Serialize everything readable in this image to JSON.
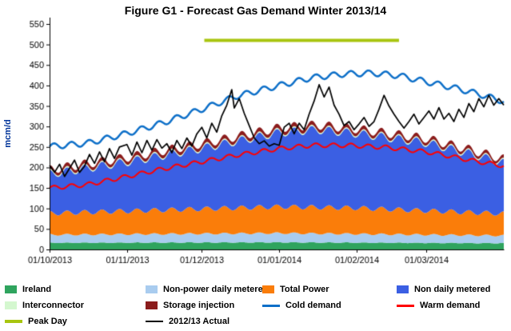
{
  "chart_data": {
    "type": "area",
    "title": "Figure G1 - Forecast Gas Demand Winter 2013/14",
    "ylabel": "mcm/d",
    "x_total_days": 182,
    "x_ticks": [
      {
        "day": 0,
        "label": "01/10/2013"
      },
      {
        "day": 31,
        "label": "01/11/2013"
      },
      {
        "day": 61,
        "label": "01/12/2013"
      },
      {
        "day": 92,
        "label": "01/01/2014"
      },
      {
        "day": 123,
        "label": "01/02/2014"
      },
      {
        "day": 151,
        "label": "01/03/2014"
      }
    ],
    "y_axis": {
      "min": 0,
      "max": 550,
      "step": 50
    },
    "osc_period_days": 7,
    "grid": false,
    "legend_position": "bottom",
    "stack_series": [
      {
        "name": "Ireland",
        "color": "#2FA45E",
        "amp": 1.5,
        "points": [
          [
            0,
            17
          ],
          [
            92,
            18
          ],
          [
            182,
            16
          ]
        ]
      },
      {
        "name": "Non-power daily metered",
        "color": "#A9CCEF",
        "amp": 3,
        "points": [
          [
            0,
            21
          ],
          [
            92,
            24
          ],
          [
            182,
            20
          ]
        ]
      },
      {
        "name": "Total Power",
        "color": "#FA7D0A",
        "amp": 7,
        "points": [
          [
            0,
            56
          ],
          [
            31,
            60
          ],
          [
            61,
            64
          ],
          [
            92,
            68
          ],
          [
            123,
            67
          ],
          [
            151,
            62
          ],
          [
            182,
            57
          ]
        ]
      },
      {
        "name": "Non daily metered",
        "color": "#3B5FE3",
        "amp": 9,
        "points": [
          [
            0,
            100
          ],
          [
            31,
            124
          ],
          [
            61,
            152
          ],
          [
            92,
            185
          ],
          [
            107,
            194
          ],
          [
            123,
            186
          ],
          [
            151,
            170
          ],
          [
            168,
            148
          ],
          [
            182,
            128
          ]
        ]
      },
      {
        "name": "Interconnector",
        "color": "#D4F7CF",
        "amp": 0,
        "points": [
          [
            0,
            3
          ],
          [
            182,
            3
          ]
        ]
      },
      {
        "name": "Storage injection",
        "color": "#8B1C1C",
        "amp": 2,
        "points": [
          [
            0,
            9
          ],
          [
            92,
            10
          ],
          [
            182,
            8
          ]
        ]
      }
    ],
    "line_series": [
      {
        "name": "Warm demand",
        "color": "#FF0000",
        "width": 2,
        "amp": 5,
        "points": [
          [
            0,
            150
          ],
          [
            15,
            158
          ],
          [
            31,
            178
          ],
          [
            45,
            196
          ],
          [
            61,
            214
          ],
          [
            75,
            230
          ],
          [
            92,
            246
          ],
          [
            105,
            254
          ],
          [
            120,
            254
          ],
          [
            135,
            249
          ],
          [
            151,
            238
          ],
          [
            160,
            228
          ],
          [
            170,
            216
          ],
          [
            182,
            204
          ]
        ]
      },
      {
        "name": "Cold demand",
        "color": "#0D6FC8",
        "width": 2.5,
        "amp": 7,
        "points": [
          [
            0,
            251
          ],
          [
            15,
            259
          ],
          [
            31,
            283
          ],
          [
            45,
            308
          ],
          [
            61,
            342
          ],
          [
            75,
            374
          ],
          [
            92,
            400
          ],
          [
            105,
            419
          ],
          [
            118,
            428
          ],
          [
            130,
            430
          ],
          [
            140,
            424
          ],
          [
            151,
            409
          ],
          [
            163,
            393
          ],
          [
            172,
            379
          ],
          [
            182,
            361
          ]
        ]
      },
      {
        "name": "2012/13 Actual",
        "color": "#000000",
        "width": 1.7,
        "amp": 0,
        "points": [
          [
            0,
            205
          ],
          [
            2,
            188
          ],
          [
            4,
            208
          ],
          [
            6,
            178
          ],
          [
            8,
            198
          ],
          [
            10,
            218
          ],
          [
            12,
            188
          ],
          [
            14,
            203
          ],
          [
            16,
            232
          ],
          [
            18,
            210
          ],
          [
            20,
            238
          ],
          [
            22,
            214
          ],
          [
            24,
            246
          ],
          [
            26,
            222
          ],
          [
            28,
            250
          ],
          [
            31,
            256
          ],
          [
            33,
            230
          ],
          [
            35,
            262
          ],
          [
            37,
            236
          ],
          [
            39,
            266
          ],
          [
            41,
            242
          ],
          [
            43,
            268
          ],
          [
            45,
            247
          ],
          [
            47,
            258
          ],
          [
            49,
            236
          ],
          [
            51,
            266
          ],
          [
            53,
            246
          ],
          [
            55,
            272
          ],
          [
            57,
            252
          ],
          [
            59,
            282
          ],
          [
            61,
            298
          ],
          [
            63,
            272
          ],
          [
            65,
            308
          ],
          [
            67,
            286
          ],
          [
            69,
            326
          ],
          [
            71,
            352
          ],
          [
            73,
            390
          ],
          [
            74,
            345
          ],
          [
            76,
            368
          ],
          [
            78,
            332
          ],
          [
            80,
            302
          ],
          [
            82,
            272
          ],
          [
            84,
            258
          ],
          [
            86,
            265
          ],
          [
            88,
            252
          ],
          [
            90,
            258
          ],
          [
            92,
            254
          ],
          [
            94,
            298
          ],
          [
            96,
            308
          ],
          [
            98,
            282
          ],
          [
            100,
            308
          ],
          [
            102,
            292
          ],
          [
            104,
            330
          ],
          [
            106,
            362
          ],
          [
            108,
            402
          ],
          [
            110,
            372
          ],
          [
            112,
            396
          ],
          [
            114,
            352
          ],
          [
            116,
            330
          ],
          [
            118,
            302
          ],
          [
            120,
            312
          ],
          [
            122,
            292
          ],
          [
            124,
            306
          ],
          [
            126,
            322
          ],
          [
            128,
            300
          ],
          [
            130,
            312
          ],
          [
            132,
            342
          ],
          [
            134,
            376
          ],
          [
            136,
            350
          ],
          [
            138,
            330
          ],
          [
            140,
            312
          ],
          [
            142,
            296
          ],
          [
            144,
            312
          ],
          [
            146,
            330
          ],
          [
            148,
            306
          ],
          [
            150,
            322
          ],
          [
            152,
            338
          ],
          [
            154,
            318
          ],
          [
            156,
            346
          ],
          [
            158,
            318
          ],
          [
            160,
            332
          ],
          [
            162,
            312
          ],
          [
            164,
            342
          ],
          [
            166,
            322
          ],
          [
            168,
            356
          ],
          [
            170,
            336
          ],
          [
            172,
            368
          ],
          [
            174,
            348
          ],
          [
            176,
            376
          ],
          [
            178,
            352
          ],
          [
            180,
            368
          ],
          [
            182,
            352
          ]
        ]
      }
    ],
    "peak_day": {
      "name": "Peak Day",
      "color": "#A8C50F",
      "value": 510,
      "from_day": 62,
      "to_day": 140,
      "width": 4
    }
  },
  "legend": {
    "items": [
      {
        "label": "Ireland",
        "color": "#2FA45E"
      },
      {
        "label": "Non-power daily metered",
        "color": "#A9CCEF"
      },
      {
        "label": "Total Power",
        "color": "#FA7D0A"
      },
      {
        "label": "Non daily metered",
        "color": "#3B5FE3"
      },
      {
        "label": "Interconnector",
        "color": "#D4F7CF"
      },
      {
        "label": "Storage injection",
        "color": "#8B1C1C"
      },
      {
        "label": "Cold demand",
        "color": "#0D6FC8"
      },
      {
        "label": "Warm demand",
        "color": "#FF0000"
      },
      {
        "label": "Peak Day",
        "color": "#A8C50F"
      },
      {
        "label": "2012/13 Actual",
        "color": "#000000"
      }
    ]
  }
}
